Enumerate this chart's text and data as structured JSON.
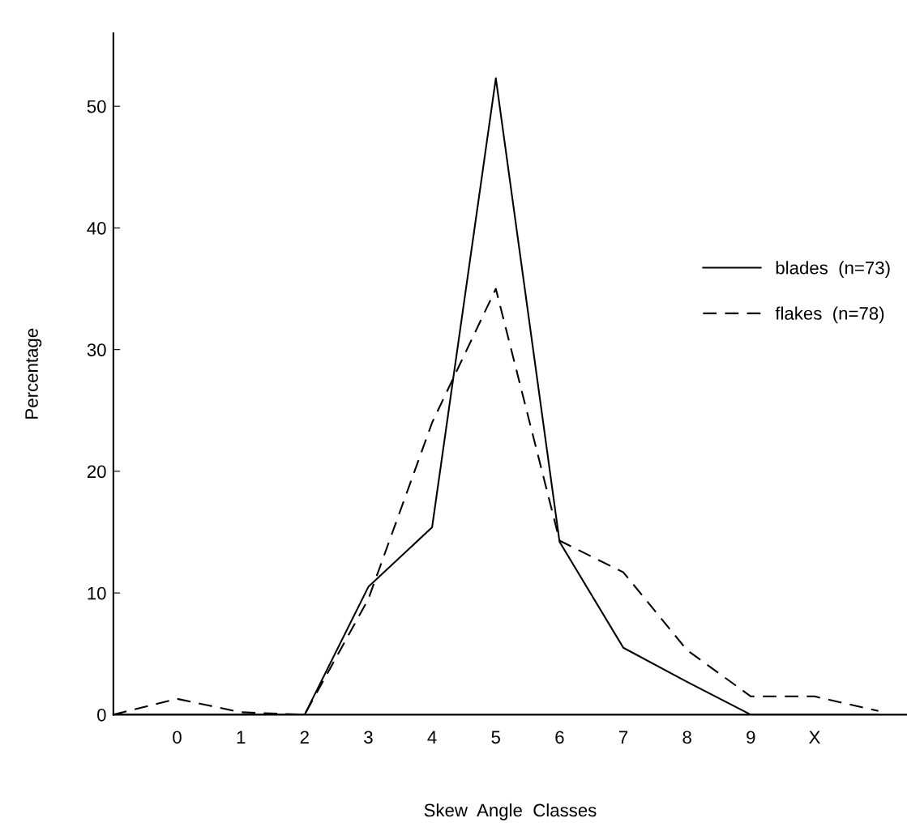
{
  "chart_data": {
    "type": "line",
    "xlabel": "Skew  Angle  Classes",
    "ylabel": "Percentage",
    "categories": [
      null,
      "0",
      "1",
      "2",
      "3",
      "4",
      "5",
      "6",
      "7",
      "8",
      "9",
      "X",
      null
    ],
    "series": [
      {
        "name": "blades  (n=73)",
        "color": "#000000",
        "line_style": "solid",
        "values": [
          0,
          0,
          0,
          0,
          10.5,
          15.4,
          52.3,
          14.2,
          5.5,
          2.7,
          0,
          0,
          0
        ]
      },
      {
        "name": "flakes  (n=78)",
        "color": "#000000",
        "line_style": "dashed",
        "values": [
          0,
          1.3,
          0.2,
          0,
          9.5,
          24,
          35,
          14.3,
          11.7,
          5.3,
          1.5,
          1.5,
          0.3
        ]
      }
    ],
    "ylim": [
      0,
      56
    ],
    "yticks": [
      0,
      10,
      20,
      30,
      40,
      50
    ],
    "grid": false,
    "legend": "right",
    "marker": "none"
  }
}
